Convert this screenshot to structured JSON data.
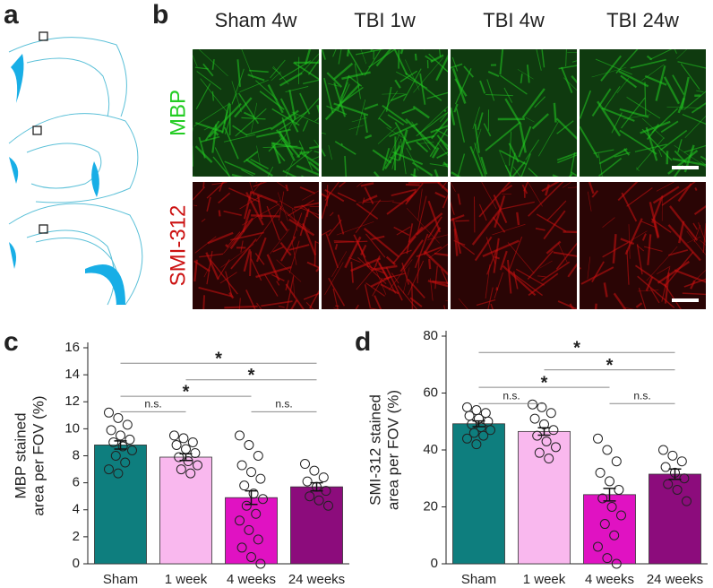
{
  "panels": {
    "a": "a",
    "b": "b"
  },
  "micrographs": {
    "columns": [
      "Sham 4w",
      "TBI 1w",
      "TBI 4w",
      "TBI 24w"
    ],
    "rows": [
      {
        "label": "MBP",
        "color": "#22cc22"
      },
      {
        "label": "SMI-312",
        "color": "#cc1111"
      }
    ]
  },
  "chart_data": [
    {
      "type": "bar",
      "panel": "c",
      "ylabel_lines": [
        "MBP stained",
        "area per FOV (%)"
      ],
      "categories": [
        "Sham",
        "1 week",
        "4 weeks",
        "24 weeks"
      ],
      "colors": [
        "#0e7e7e",
        "#f9b8ee",
        "#e012c2",
        "#8c0c7c"
      ],
      "values": [
        8.8,
        7.9,
        4.9,
        5.7
      ],
      "errors": [
        0.3,
        0.25,
        0.5,
        0.3
      ],
      "points": [
        [
          11.2,
          10.8,
          10.3,
          9.9,
          9.5,
          9.2,
          9,
          8.7,
          8.4,
          8,
          7.5,
          7,
          6.7
        ],
        [
          9.5,
          9.3,
          9,
          8.8,
          8.5,
          8.2,
          7.9,
          7.6,
          7.3,
          7,
          6.7
        ],
        [
          9.5,
          8.8,
          8,
          7.3,
          6.8,
          6.3,
          5.8,
          5.2,
          4.8,
          4.3,
          3.7,
          3.2,
          2.5,
          1.8,
          1.2,
          0.5,
          0
        ],
        [
          7.4,
          6.9,
          6.4,
          6.1,
          5.7,
          5.4,
          5,
          4.7,
          4.3
        ]
      ],
      "comparisons": [
        {
          "from": 0,
          "to": 3,
          "label": "*"
        },
        {
          "from": 1,
          "to": 3,
          "label": "*"
        },
        {
          "from": 0,
          "to": 2,
          "label": "*"
        },
        {
          "from": 0,
          "to": 1,
          "label": "n.s."
        },
        {
          "from": 2,
          "to": 3,
          "label": "n.s."
        }
      ],
      "ylim": [
        0,
        16
      ],
      "yticks": [
        0,
        2,
        4,
        6,
        8,
        10,
        12,
        14,
        16
      ]
    },
    {
      "type": "bar",
      "panel": "d",
      "ylabel_lines": [
        "SMI-312 stained",
        "area per FOV (%)"
      ],
      "categories": [
        "Sham",
        "1 week",
        "4 weeks",
        "24 weeks"
      ],
      "colors": [
        "#0e7e7e",
        "#f9b8ee",
        "#e012c2",
        "#8c0c7c"
      ],
      "values": [
        49.2,
        46.5,
        24.3,
        31.5
      ],
      "errors": [
        1,
        1.3,
        2.2,
        1.8
      ],
      "points": [
        [
          55,
          54,
          53,
          52,
          51,
          50,
          49,
          48,
          47,
          46,
          45,
          44,
          42
        ],
        [
          56,
          55,
          53,
          51,
          49,
          47,
          45,
          43,
          41,
          39,
          37
        ],
        [
          44,
          40,
          36,
          32,
          29,
          26,
          23,
          20,
          17,
          14,
          10,
          6,
          2,
          0
        ],
        [
          40,
          38,
          36,
          34,
          32,
          30,
          28,
          26,
          22
        ]
      ],
      "comparisons": [
        {
          "from": 0,
          "to": 3,
          "label": "*"
        },
        {
          "from": 1,
          "to": 3,
          "label": "*"
        },
        {
          "from": 0,
          "to": 2,
          "label": "*"
        },
        {
          "from": 0,
          "to": 1,
          "label": "n.s."
        },
        {
          "from": 2,
          "to": 3,
          "label": "n.s."
        }
      ],
      "ylim": [
        0,
        80
      ],
      "yticks": [
        0,
        20,
        40,
        60,
        80
      ]
    }
  ]
}
